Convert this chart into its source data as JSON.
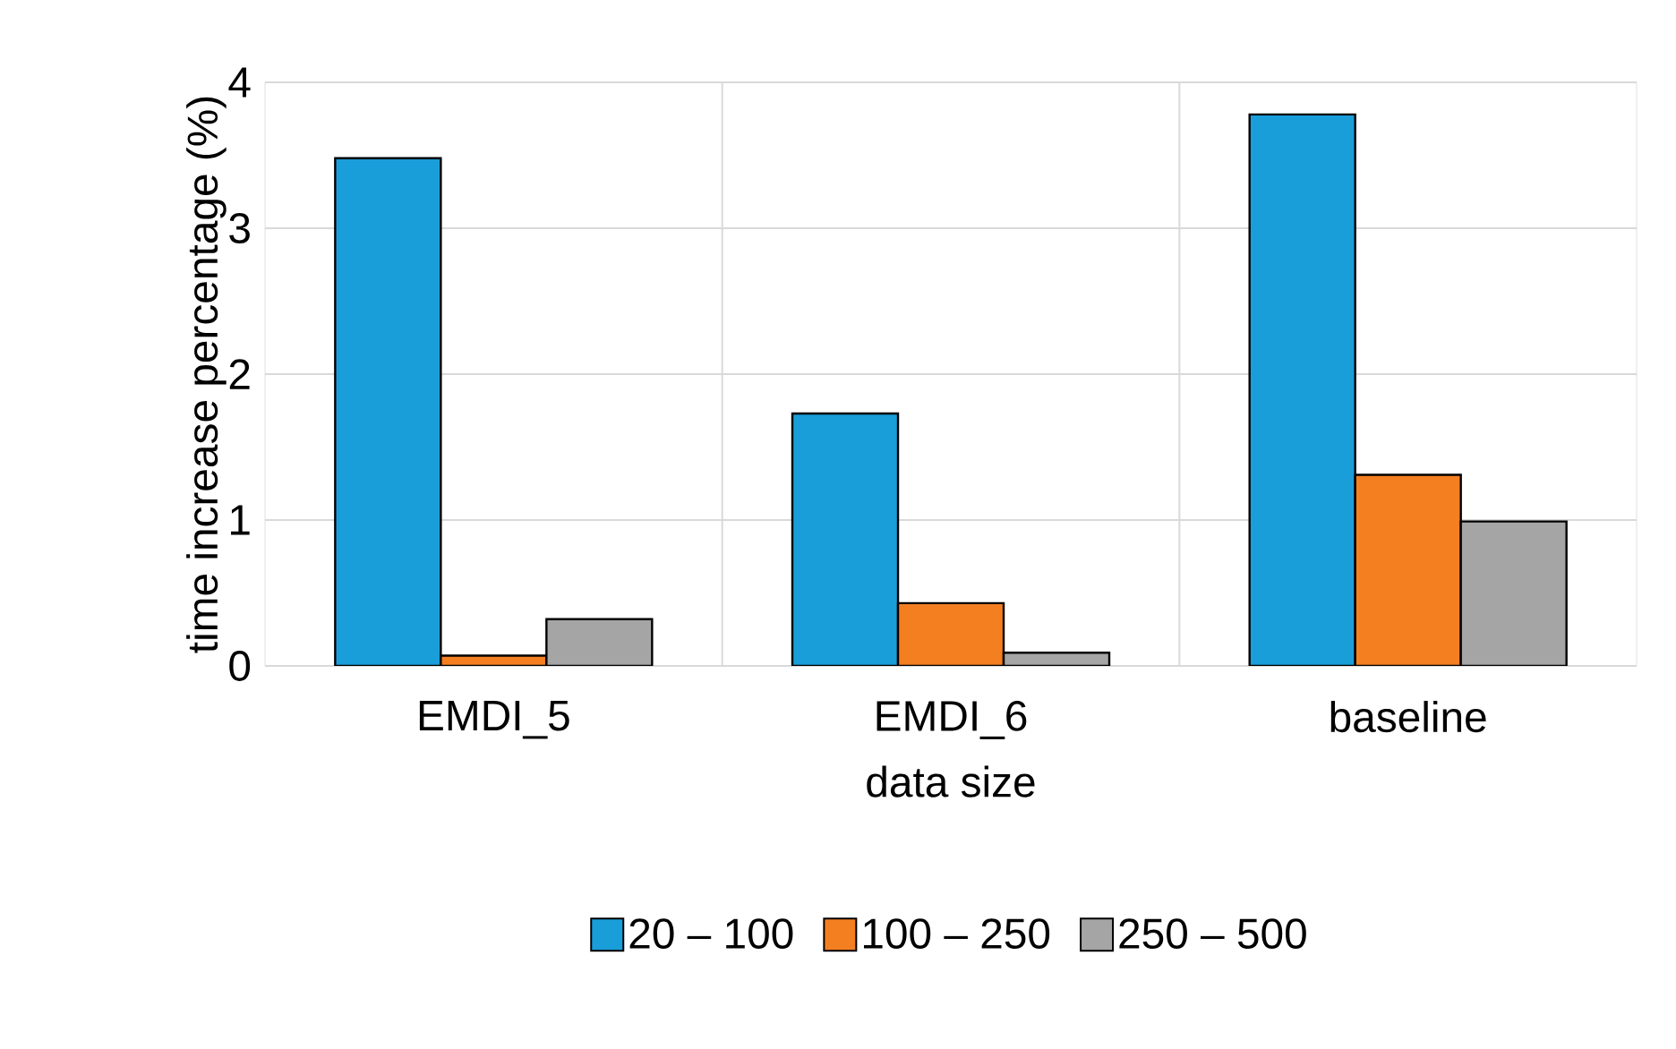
{
  "chart_data": {
    "type": "bar",
    "xlabel": "data size",
    "ylabel": "time increase percentage (%)",
    "categories": [
      "EMDI_5",
      "EMDI_6",
      "baseline"
    ],
    "series": [
      {
        "name": "20 – 100",
        "color": "#1a9ed9",
        "values": [
          3.48,
          1.73,
          3.78
        ]
      },
      {
        "name": "100 – 250",
        "color": "#f47f20",
        "values": [
          0.07,
          0.43,
          1.31
        ]
      },
      {
        "name": "250 – 500",
        "color": "#a5a5a5",
        "values": [
          0.32,
          0.09,
          0.99
        ]
      }
    ],
    "ylim": [
      0,
      4
    ],
    "yticks": [
      0,
      1,
      2,
      3,
      4
    ],
    "grid": true,
    "legend": "bottom"
  }
}
